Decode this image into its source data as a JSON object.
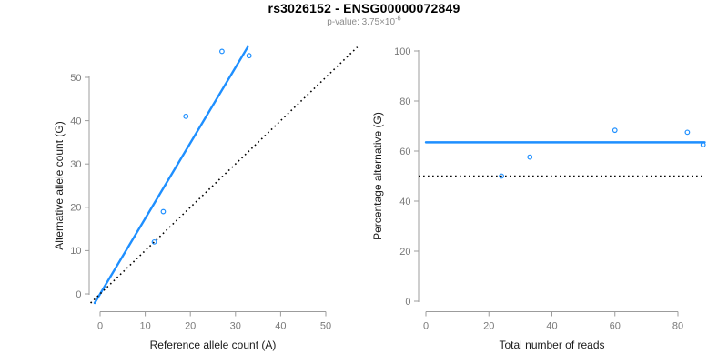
{
  "figure": {
    "title": "rs3026152 - ENSG00000072849",
    "subtitle_label": "p-value:",
    "subtitle_mantissa": "3.75×10",
    "subtitle_exponent": "-6",
    "colors": {
      "accent_blue": "#1e8fff",
      "line_black": "#000000",
      "axis_gray": "#9c9c9c",
      "tick_text_gray": "#7a7a7a",
      "axis_title_dark": "#1a1a1a",
      "subtitle_gray": "#8c8c8c"
    }
  },
  "chart_data": [
    {
      "type": "scatter",
      "name": "allele-count-plot",
      "title": "",
      "xlabel": "Reference allele count (A)",
      "ylabel": "Alternative allele count (G)",
      "xticks": [
        0,
        10,
        20,
        30,
        40,
        50
      ],
      "yticks": [
        0,
        10,
        20,
        30,
        40,
        50
      ],
      "xlim": [
        -2.2,
        57.2
      ],
      "ylim": [
        -2.3,
        58.2
      ],
      "grid": false,
      "legend": false,
      "points": [
        [
          12,
          12
        ],
        [
          14,
          19
        ],
        [
          19,
          41
        ],
        [
          27,
          56
        ],
        [
          33,
          55
        ]
      ],
      "lines": [
        {
          "name": "regression-fit-line",
          "style": "solid",
          "color": "#1e8fff",
          "x1": -1.2,
          "y1": -2.1,
          "x2": 32.7,
          "y2": 57.0
        },
        {
          "name": "identity-line",
          "style": "dotted",
          "color": "#000000",
          "x1": -2.1,
          "y1": -2.1,
          "x2": 57.0,
          "y2": 57.0
        }
      ]
    },
    {
      "type": "scatter",
      "name": "percentage-reads-plot",
      "title": "",
      "xlabel": "Total number of reads",
      "ylabel": "Percentage alternative (G)",
      "xticks": [
        0,
        20,
        40,
        60,
        80
      ],
      "yticks": [
        0,
        20,
        40,
        60,
        80,
        100
      ],
      "xlim": [
        -3.5,
        91.5
      ],
      "ylim": [
        -4,
        104
      ],
      "grid": false,
      "legend": false,
      "points": [
        [
          24,
          50
        ],
        [
          33,
          57.6
        ],
        [
          60,
          68.3
        ],
        [
          83,
          67.5
        ],
        [
          88,
          62.5
        ]
      ],
      "lines": [
        {
          "name": "mean-percentage-line",
          "style": "solid",
          "color": "#1e8fff",
          "x1": 0,
          "y1": 63.5,
          "x2": 88.5,
          "y2": 63.5
        },
        {
          "name": "null-50-percent-line",
          "style": "dotted",
          "color": "#000000",
          "x1": -2.3,
          "y1": 50,
          "x2": 87.5,
          "y2": 50
        }
      ]
    }
  ]
}
